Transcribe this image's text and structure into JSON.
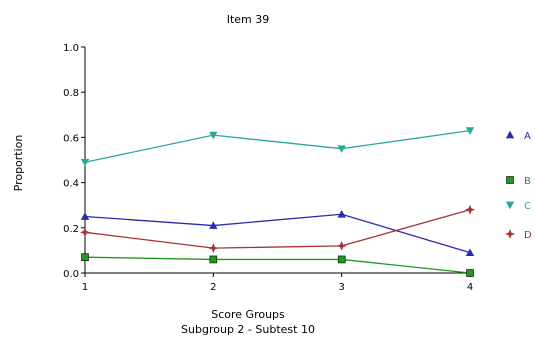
{
  "chart_data": {
    "type": "line",
    "title": "Item 39",
    "xlabel": "Score Groups",
    "subtitle": "Subgroup 2 - Subtest 10",
    "ylabel": "Proportion",
    "x": [
      1,
      2,
      3,
      4
    ],
    "xticks": [
      "1",
      "2",
      "3",
      "4"
    ],
    "ylim": [
      0,
      1.0
    ],
    "yticks": [
      "0.0",
      "0.2",
      "0.4",
      "0.6",
      "0.8",
      "1.0"
    ],
    "grid": false,
    "legend_position": "right",
    "series": [
      {
        "name": "A",
        "values": [
          0.25,
          0.21,
          0.26,
          0.09
        ],
        "color": "#2b2bb0",
        "marker": "triangle-up"
      },
      {
        "name": "B",
        "values": [
          0.07,
          0.06,
          0.06,
          0.0
        ],
        "color": "#1f9a1f",
        "marker": "square"
      },
      {
        "name": "C",
        "values": [
          0.49,
          0.61,
          0.55,
          0.63
        ],
        "color": "#2aa8a0",
        "marker": "triangle-down"
      },
      {
        "name": "D",
        "values": [
          0.18,
          0.11,
          0.12,
          0.28
        ],
        "color": "#a83232",
        "marker": "star"
      }
    ]
  }
}
